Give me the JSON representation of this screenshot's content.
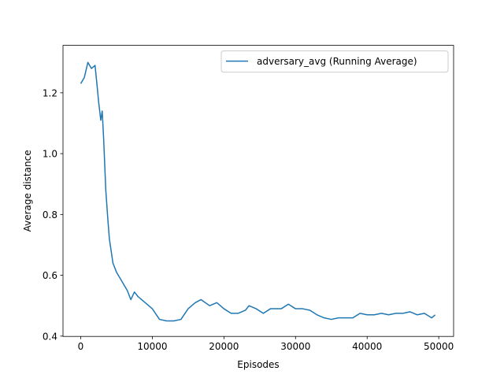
{
  "chart_data": {
    "type": "line",
    "xlabel": "Episodes",
    "ylabel": "Average distance",
    "x": [
      0,
      500,
      1000,
      1500,
      2000,
      2300,
      2500,
      2800,
      3000,
      3200,
      3500,
      3800,
      4000,
      4500,
      5000,
      5500,
      6000,
      6500,
      7000,
      7500,
      8000,
      9000,
      10000,
      11000,
      12000,
      13000,
      14000,
      15000,
      16000,
      16800,
      18000,
      19000,
      20000,
      21000,
      22000,
      23000,
      23500,
      24500,
      25500,
      26500,
      28000,
      29000,
      30000,
      31000,
      32000,
      33000,
      34000,
      35000,
      36000,
      37000,
      38000,
      39000,
      40000,
      41000,
      42000,
      43000,
      44000,
      45000,
      46000,
      47000,
      48000,
      49000,
      49500
    ],
    "series": [
      {
        "name": "adversary_avg (Running Average)",
        "color": "#1f77b4",
        "values": [
          1.23,
          1.25,
          1.3,
          1.28,
          1.29,
          1.22,
          1.17,
          1.11,
          1.14,
          1.05,
          0.88,
          0.78,
          0.72,
          0.64,
          0.61,
          0.59,
          0.57,
          0.55,
          0.52,
          0.545,
          0.53,
          0.51,
          0.49,
          0.455,
          0.45,
          0.45,
          0.455,
          0.49,
          0.51,
          0.52,
          0.5,
          0.51,
          0.49,
          0.475,
          0.475,
          0.485,
          0.5,
          0.49,
          0.475,
          0.49,
          0.49,
          0.505,
          0.49,
          0.49,
          0.485,
          0.47,
          0.46,
          0.455,
          0.46,
          0.46,
          0.46,
          0.475,
          0.47,
          0.47,
          0.475,
          0.47,
          0.475,
          0.475,
          0.48,
          0.47,
          0.475,
          0.46,
          0.47
        ]
      }
    ],
    "xlim": [
      -2475,
      52073
    ],
    "xticks": [
      0,
      10000,
      20000,
      30000,
      40000,
      50000
    ],
    "ylim": [
      0.399,
      1.356
    ],
    "yticks": [
      0.4,
      0.6,
      0.8,
      {
        "value": 1,
        "label": "1.0"
      },
      1.2
    ],
    "legend": "upper right",
    "grid": false
  }
}
